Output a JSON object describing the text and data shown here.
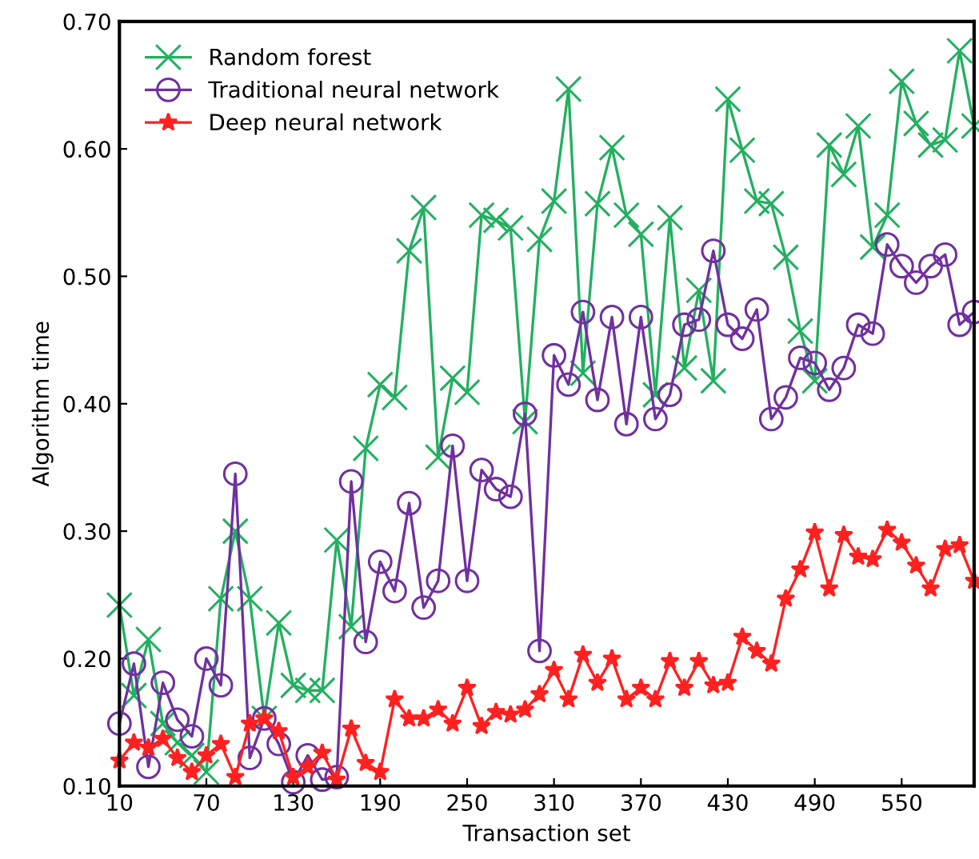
{
  "chart_data": {
    "type": "line",
    "xlabel": "Transaction set",
    "ylabel": "Algorithm time",
    "x": [
      10,
      20,
      30,
      40,
      50,
      60,
      70,
      80,
      90,
      100,
      110,
      120,
      130,
      140,
      150,
      160,
      170,
      180,
      190,
      200,
      210,
      220,
      230,
      240,
      250,
      260,
      270,
      280,
      290,
      300,
      310,
      320,
      330,
      340,
      350,
      360,
      370,
      380,
      390,
      400,
      410,
      420,
      430,
      440,
      450,
      460,
      470,
      480,
      490,
      500,
      510,
      520,
      530,
      540,
      550,
      560,
      570,
      580,
      590,
      600
    ],
    "xlim": [
      10,
      600
    ],
    "xticks": [
      10,
      70,
      130,
      190,
      250,
      310,
      370,
      430,
      490,
      550
    ],
    "ylim": [
      0.1,
      0.7
    ],
    "yticks": [
      {
        "value": 0.1,
        "label": "0.10"
      },
      {
        "value": 0.2,
        "label": "0.20"
      },
      {
        "value": 0.3,
        "label": "0.30"
      },
      {
        "value": 0.4,
        "label": "0.40"
      },
      {
        "value": 0.5,
        "label": "0.50"
      },
      {
        "value": 0.6,
        "label": "0.60"
      },
      {
        "value": 0.7,
        "label": "0.70"
      }
    ],
    "grid": false,
    "legend": "top left",
    "line_style": "solid",
    "series": [
      {
        "name": "Random forest",
        "color": "#22b060",
        "marker": "cross",
        "values": [
          0.242,
          0.171,
          0.215,
          0.149,
          0.134,
          0.124,
          0.111,
          0.247,
          0.3,
          0.247,
          0.153,
          0.228,
          0.179,
          0.175,
          0.175,
          0.293,
          0.225,
          0.365,
          0.415,
          0.405,
          0.52,
          0.554,
          0.358,
          0.42,
          0.409,
          0.548,
          0.544,
          0.538,
          0.386,
          0.529,
          0.559,
          0.647,
          0.424,
          0.557,
          0.601,
          0.548,
          0.533,
          0.407,
          0.546,
          0.428,
          0.489,
          0.418,
          0.639,
          0.599,
          0.559,
          0.557,
          0.515,
          0.457,
          0.418,
          0.603,
          0.58,
          0.618,
          0.523,
          0.548,
          0.653,
          0.62,
          0.603,
          0.607,
          0.677,
          0.618
        ]
      },
      {
        "name": "Traditional neural network",
        "color": "#7030a0",
        "marker": "circle",
        "values": [
          0.149,
          0.196,
          0.115,
          0.181,
          0.152,
          0.139,
          0.2,
          0.179,
          0.345,
          0.122,
          0.153,
          0.133,
          0.103,
          0.124,
          0.105,
          0.107,
          0.339,
          0.213,
          0.276,
          0.253,
          0.322,
          0.24,
          0.261,
          0.367,
          0.261,
          0.348,
          0.333,
          0.327,
          0.392,
          0.206,
          0.438,
          0.415,
          0.472,
          0.403,
          0.468,
          0.384,
          0.468,
          0.388,
          0.407,
          0.462,
          0.466,
          0.52,
          0.462,
          0.451,
          0.474,
          0.388,
          0.405,
          0.436,
          0.432,
          0.411,
          0.428,
          0.462,
          0.455,
          0.525,
          0.508,
          0.495,
          0.508,
          0.517,
          0.462,
          0.472
        ]
      },
      {
        "name": "Deep neural network",
        "color": "#ff2020",
        "marker": "star",
        "values": [
          0.12,
          0.134,
          0.13,
          0.137,
          0.122,
          0.111,
          0.124,
          0.133,
          0.107,
          0.149,
          0.153,
          0.143,
          0.107,
          0.115,
          0.126,
          0.105,
          0.145,
          0.118,
          0.111,
          0.168,
          0.153,
          0.153,
          0.16,
          0.149,
          0.177,
          0.147,
          0.158,
          0.156,
          0.16,
          0.172,
          0.191,
          0.168,
          0.203,
          0.181,
          0.2,
          0.168,
          0.177,
          0.168,
          0.198,
          0.177,
          0.198,
          0.179,
          0.181,
          0.217,
          0.206,
          0.196,
          0.247,
          0.27,
          0.299,
          0.255,
          0.297,
          0.28,
          0.278,
          0.301,
          0.291,
          0.273,
          0.255,
          0.286,
          0.289,
          0.261
        ]
      }
    ]
  }
}
